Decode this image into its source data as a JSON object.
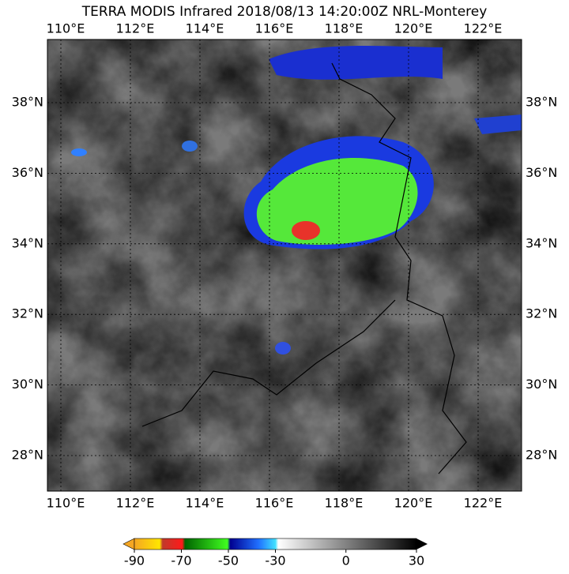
{
  "title": "TERRA MODIS Infrared 2018/08/13 14:20:00Z NRL-Monterey",
  "top_lon_labels": [
    "110°E",
    "112°E",
    "114°E",
    "116°E",
    "118°E",
    "120°E",
    "122°E"
  ],
  "bottom_lon_labels": [
    "110°E",
    "112°E",
    "114°E",
    "116°E",
    "118°E",
    "120°E",
    "122°E"
  ],
  "left_lat_labels": [
    "38°N",
    "36°N",
    "34°N",
    "32°N",
    "30°N",
    "28°N"
  ],
  "right_lat_labels": [
    "38°N",
    "36°N",
    "34°N",
    "32°N",
    "30°N",
    "28°N"
  ],
  "colorbar": {
    "ticks": [
      -90,
      -70,
      -50,
      -30,
      0,
      30
    ]
  }
}
